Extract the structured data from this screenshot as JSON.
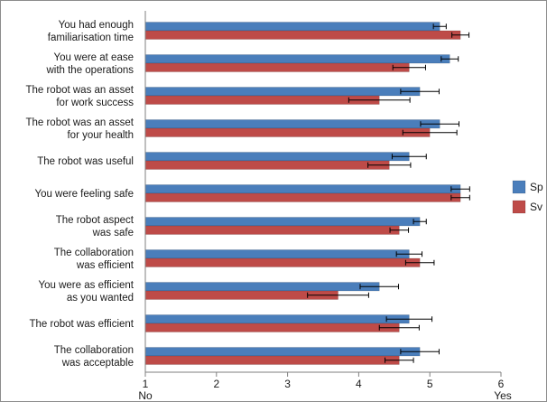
{
  "chart_data": {
    "type": "bar",
    "orientation": "horizontal",
    "categories": [
      [
        "You had enough",
        "familiarisation time"
      ],
      [
        "You were at ease",
        "with the operations"
      ],
      [
        "The robot was an asset",
        "for work success"
      ],
      [
        "The robot was an asset",
        "for your health"
      ],
      [
        "The robot was useful"
      ],
      [
        "You were feeling safe"
      ],
      [
        "The robot aspect",
        "was safe"
      ],
      [
        "The collaboration",
        "was efficient"
      ],
      [
        "You were as efficient",
        "as you wanted"
      ],
      [
        "The robot was efficient"
      ],
      [
        "The collaboration",
        "was acceptable"
      ]
    ],
    "series": [
      {
        "name": "Sp",
        "color": "#4a7ebb",
        "values": [
          5.14,
          5.28,
          4.86,
          5.14,
          4.71,
          5.43,
          4.86,
          4.71,
          4.29,
          4.71,
          4.86
        ],
        "errors": [
          0.09,
          0.12,
          0.27,
          0.27,
          0.24,
          0.13,
          0.09,
          0.18,
          0.27,
          0.32,
          0.27
        ]
      },
      {
        "name": "Sv",
        "color": "#be4b48",
        "values": [
          5.43,
          4.71,
          4.29,
          5.0,
          4.43,
          5.43,
          4.57,
          4.86,
          3.71,
          4.57,
          4.57
        ],
        "errors": [
          0.12,
          0.23,
          0.43,
          0.38,
          0.3,
          0.13,
          0.13,
          0.2,
          0.43,
          0.28,
          0.2
        ]
      }
    ],
    "xlim": [
      1,
      6
    ],
    "xticks": [
      "1",
      "2",
      "3",
      "4",
      "5",
      "6"
    ],
    "x_low_label": "No",
    "x_high_label": "Yes",
    "grid": false,
    "legend_position": "right"
  }
}
